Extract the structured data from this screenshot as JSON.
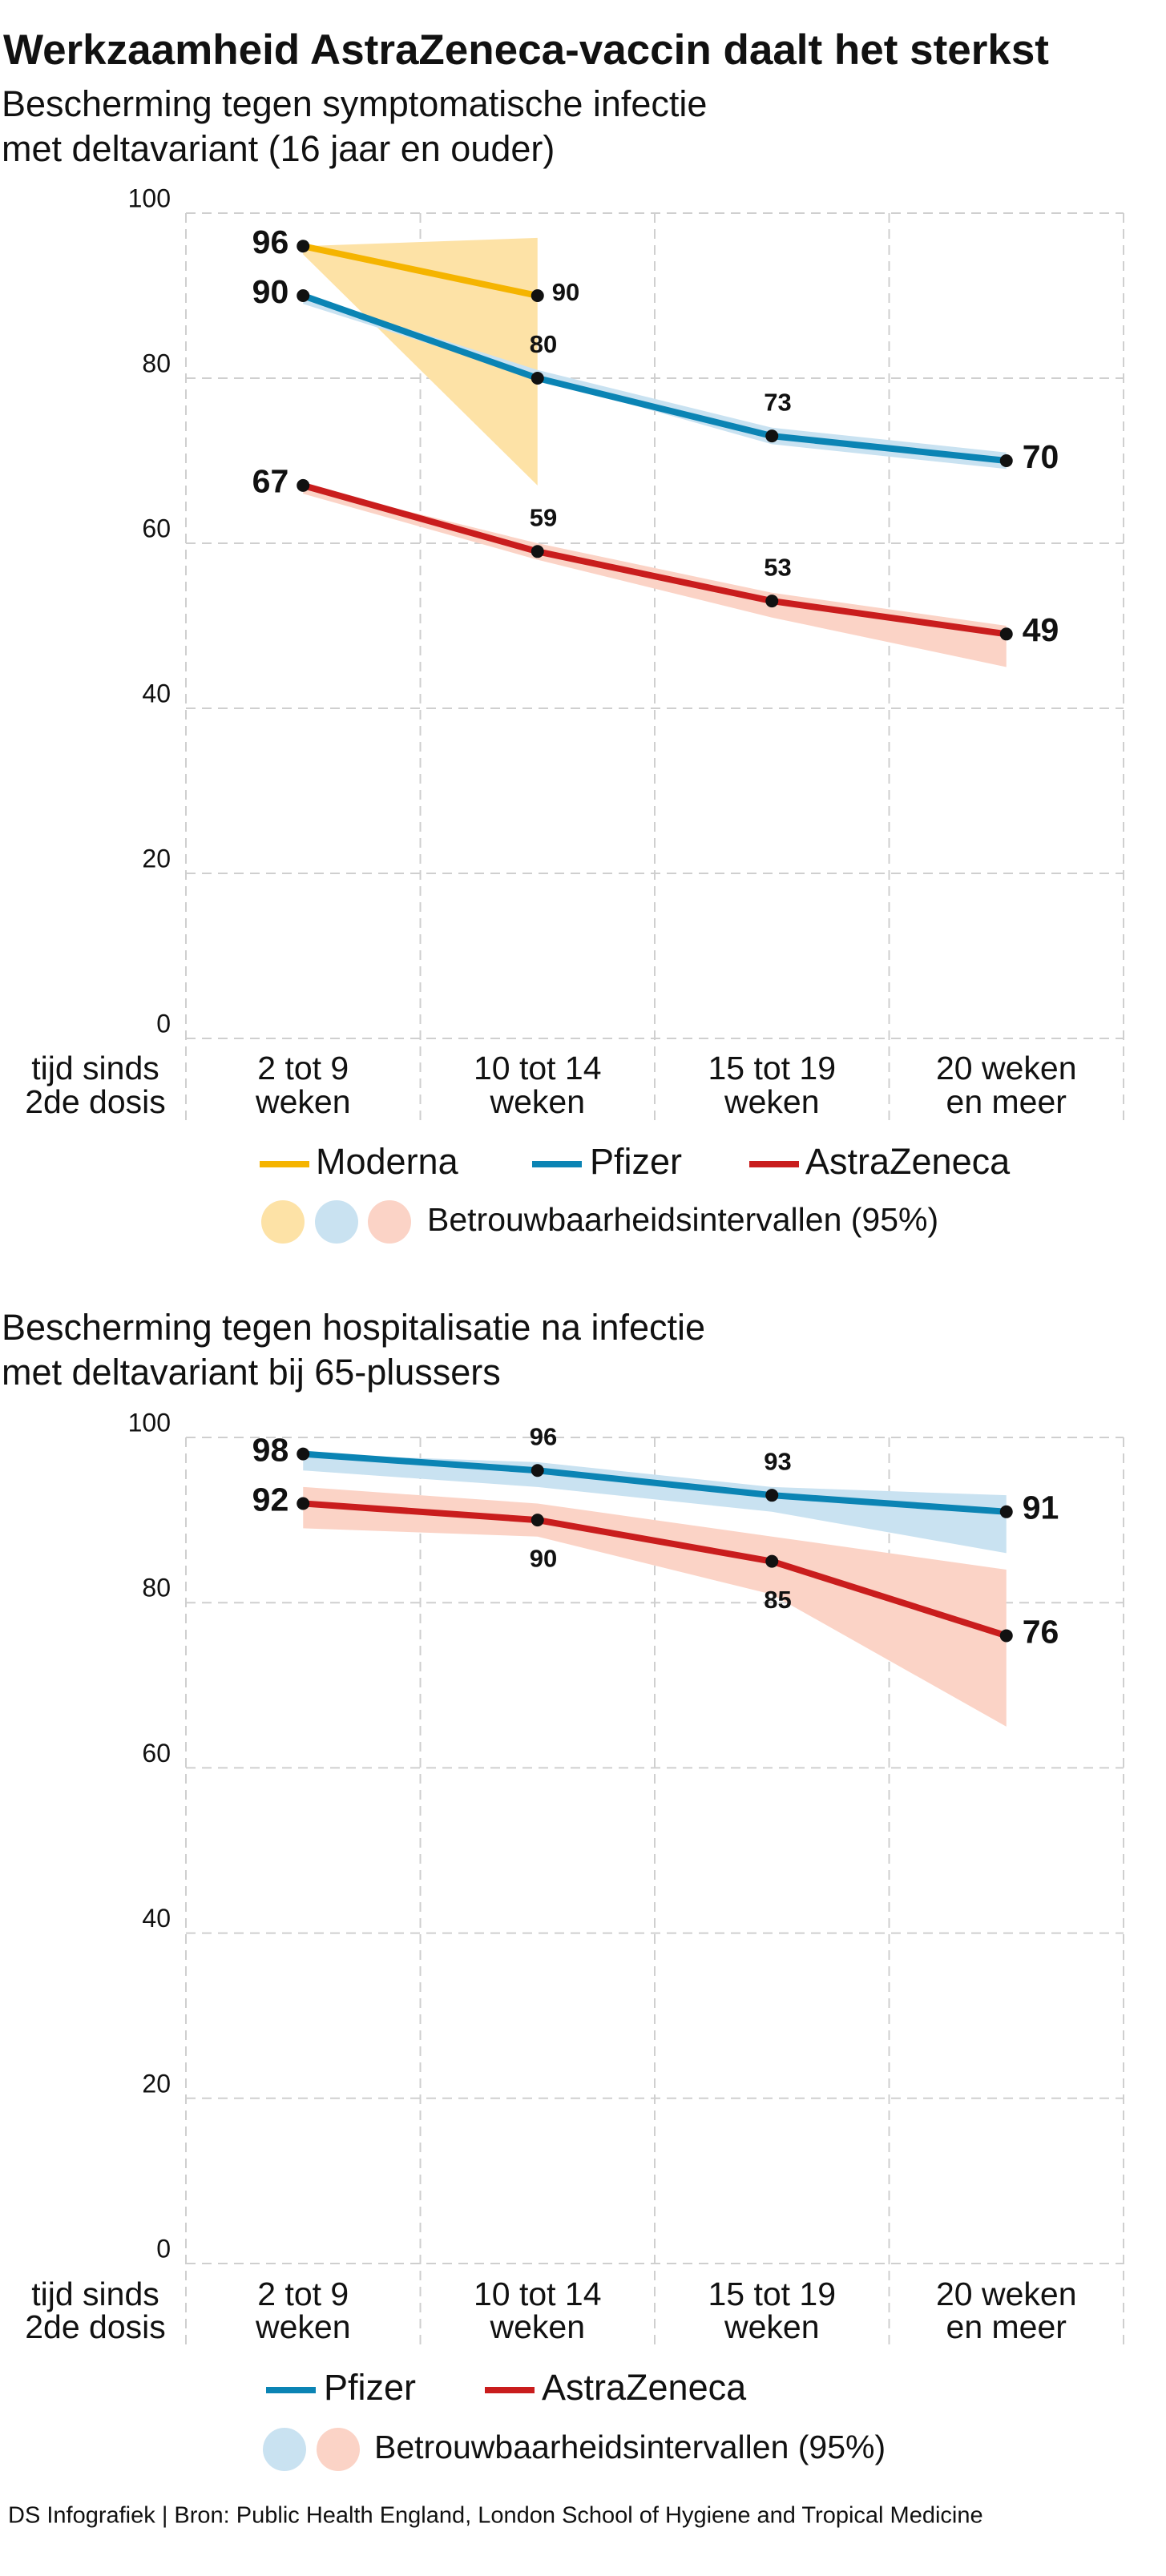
{
  "title": "Werkzaamheid AstraZeneca-vaccin daalt het sterkst",
  "source": "DS Infografiek | Bron: Public Health England, London School of Hygiene and Tropical Medicine",
  "chart_data": [
    {
      "type": "line",
      "subtitle": [
        "Bescherming tegen symptomatische infectie",
        "met deltavariant (16 jaar en ouder)"
      ],
      "x_axis_label": [
        "tijd sinds",
        "2de dosis"
      ],
      "categories": [
        [
          "2 tot 9",
          "weken"
        ],
        [
          "10 tot 14",
          "weken"
        ],
        [
          "15 tot 19",
          "weken"
        ],
        [
          "20 weken",
          "en meer"
        ]
      ],
      "ylim": [
        0,
        100
      ],
      "yticks": [
        0,
        20,
        40,
        60,
        80,
        100
      ],
      "grid": true,
      "interval_label": "Betrouwbaarheidsintervallen (95%)",
      "series": [
        {
          "name": "Moderna",
          "color": "#f5b400",
          "band_color": "#fde2a6",
          "values": [
            96,
            90,
            null,
            null
          ],
          "lower": [
            95,
            67,
            null,
            null
          ],
          "upper": [
            96,
            97,
            null,
            null
          ]
        },
        {
          "name": "Pfizer",
          "color": "#0b84b4",
          "band_color": "#c9e2f1",
          "values": [
            90,
            80,
            73,
            70
          ],
          "lower": [
            89,
            80,
            72,
            69
          ],
          "upper": [
            90,
            81,
            74,
            71
          ]
        },
        {
          "name": "AstraZeneca",
          "color": "#c91d1d",
          "band_color": "#fbd3c6",
          "values": [
            67,
            59,
            53,
            49
          ],
          "lower": [
            66,
            58,
            51,
            45
          ],
          "upper": [
            67,
            60,
            54,
            50
          ]
        }
      ]
    },
    {
      "type": "line",
      "subtitle": [
        "Bescherming tegen hospitalisatie na infectie",
        "met deltavariant bij 65-plussers"
      ],
      "x_axis_label": [
        "tijd sinds",
        "2de dosis"
      ],
      "categories": [
        [
          "2 tot 9",
          "weken"
        ],
        [
          "10 tot 14",
          "weken"
        ],
        [
          "15 tot 19",
          "weken"
        ],
        [
          "20 weken",
          "en meer"
        ]
      ],
      "ylim": [
        0,
        100
      ],
      "yticks": [
        0,
        20,
        40,
        60,
        80,
        100
      ],
      "grid": true,
      "interval_label": "Betrouwbaarheidsintervallen (95%)",
      "series": [
        {
          "name": "Pfizer",
          "color": "#0b84b4",
          "band_color": "#c9e2f1",
          "values": [
            98,
            96,
            93,
            91
          ],
          "lower": [
            96,
            94,
            91,
            86
          ],
          "upper": [
            98,
            97,
            94,
            93
          ]
        },
        {
          "name": "AstraZeneca",
          "color": "#c91d1d",
          "band_color": "#fbd3c6",
          "values": [
            92,
            90,
            85,
            76
          ],
          "lower": [
            89,
            88,
            81,
            65
          ],
          "upper": [
            94,
            92,
            88,
            84
          ]
        }
      ]
    }
  ]
}
